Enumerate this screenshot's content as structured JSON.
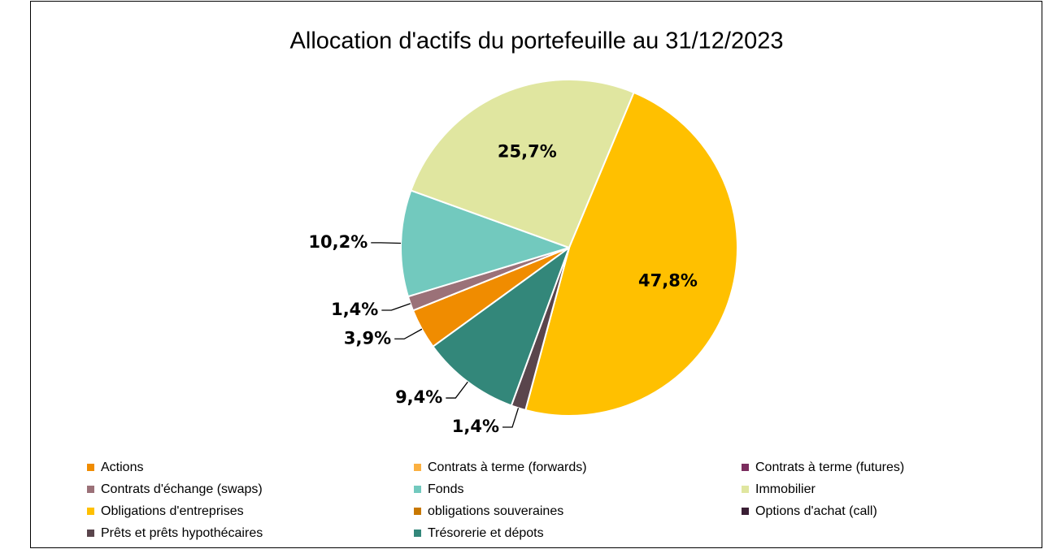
{
  "chart_data": {
    "type": "pie",
    "title": "Allocation d'actifs du portefeuille au 31/12/2023",
    "categories": [
      "Actions",
      "Contrats à terme (forwards)",
      "Contrats à terme (futures)",
      "Contrats d'échange (swaps)",
      "Fonds",
      "Immobilier",
      "Obligations d'entreprises",
      "obligations souveraines",
      "Options d'achat (call)",
      "Prêts et prêts hypothécaires",
      "Trésorerie et dépots"
    ],
    "values": [
      3.9,
      0,
      0,
      1.4,
      10.2,
      25.7,
      47.8,
      0,
      0,
      1.4,
      9.4
    ],
    "value_labels": [
      "3,9%",
      null,
      null,
      "1,4%",
      "10,2%",
      "25,7%",
      "47,8%",
      null,
      null,
      "1,4%",
      "9,4%"
    ],
    "colors": [
      "#F08C00",
      "#FBB040",
      "#7B2D5E",
      "#9B7178",
      "#72C9BE",
      "#E0E6A0",
      "#FFC000",
      "#C87800",
      "#3A1E34",
      "#5A454C",
      "#33877A"
    ],
    "legend": "bottom"
  }
}
